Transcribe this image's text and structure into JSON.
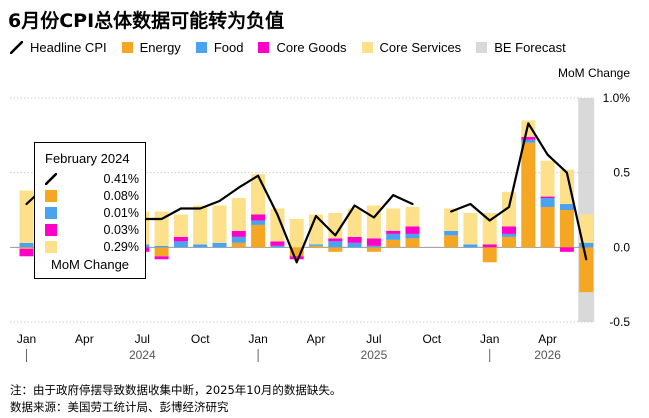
{
  "title": "6月份CPI总体数据可能转为负值",
  "legend": [
    {
      "label": "Headline CPI",
      "color": "#000000",
      "kind": "line"
    },
    {
      "label": "Energy",
      "color": "#f5a623",
      "kind": "box"
    },
    {
      "label": "Food",
      "color": "#4aa3f0",
      "kind": "box"
    },
    {
      "label": "Core Goods",
      "color": "#ff00c8",
      "kind": "box"
    },
    {
      "label": "Core Services",
      "color": "#fde08a",
      "kind": "box"
    },
    {
      "label": "BE Forecast",
      "color": "#d9d9d9",
      "kind": "box"
    }
  ],
  "tooltip": {
    "title": "February 2024",
    "rows": [
      {
        "value": "0.41%",
        "color": "#000000",
        "kind": "line"
      },
      {
        "value": "0.08%",
        "color": "#f5a623",
        "kind": "box"
      },
      {
        "value": "0.01%",
        "color": "#4aa3f0",
        "kind": "box"
      },
      {
        "value": "0.03%",
        "color": "#ff00c8",
        "kind": "box"
      },
      {
        "value": "0.29%",
        "color": "#fde08a",
        "kind": "box"
      }
    ],
    "unit": "MoM Change"
  },
  "footnote": "注：由于政府停摆导致数据收集中断，2025年10月的数据缺失。",
  "source": "数据来源：美国劳工统计局、彭博经济研究",
  "chart_data": {
    "type": "bar",
    "stacked": true,
    "ylabel": "MoM Change",
    "ylim": [
      -0.5,
      1.0
    ],
    "yticks": [
      {
        "value": 1.0,
        "label": "1.0%"
      },
      {
        "value": 0.5,
        "label": "0.5"
      },
      {
        "value": 0.0,
        "label": "0.0"
      },
      {
        "value": -0.5,
        "label": "-0.5"
      }
    ],
    "x_month_labels": [
      "Jan",
      "Apr",
      "Jul",
      "Oct",
      "Jan",
      "Apr",
      "Jul",
      "Oct",
      "Jan",
      "Apr"
    ],
    "x_month_label_index": [
      0,
      3,
      6,
      9,
      12,
      15,
      18,
      21,
      24,
      27
    ],
    "year_labels": [
      {
        "label": "2024",
        "index": 6
      },
      {
        "label": "2025",
        "index": 18
      },
      {
        "label": "2026",
        "index": 27
      }
    ],
    "year_separators": [
      0,
      12,
      24
    ],
    "forecast_start_index": 29,
    "missing_index": [
      21
    ],
    "categories": [
      "2024-01",
      "2024-02",
      "2024-03",
      "2024-04",
      "2024-05",
      "2024-06",
      "2024-07",
      "2024-08",
      "2024-09",
      "2024-10",
      "2024-11",
      "2024-12",
      "2025-01",
      "2025-02",
      "2025-03",
      "2025-04",
      "2025-05",
      "2025-06",
      "2025-07",
      "2025-08",
      "2025-09",
      "2025-10",
      "2025-11",
      "2025-12",
      "2026-01",
      "2026-02",
      "2026-03",
      "2026-04",
      "2026-05",
      "2026-06"
    ],
    "series": [
      {
        "name": "Energy",
        "color": "#f5a623",
        "values": [
          -0.01,
          0.08,
          0.05,
          0.05,
          -0.04,
          -0.06,
          0.0,
          -0.06,
          0.0,
          0.0,
          0.0,
          0.03,
          0.15,
          0.0,
          -0.06,
          0.01,
          -0.03,
          0.0,
          -0.03,
          0.05,
          0.06,
          null,
          0.08,
          0.0,
          -0.1,
          0.07,
          0.7,
          0.27,
          0.25,
          -0.3
        ]
      },
      {
        "name": "Food",
        "color": "#4aa3f0",
        "values": [
          0.03,
          0.01,
          0.01,
          0.01,
          0.0,
          0.02,
          0.02,
          0.01,
          0.04,
          0.02,
          0.03,
          0.04,
          0.03,
          0.01,
          0.0,
          0.01,
          0.04,
          0.03,
          0.01,
          0.04,
          0.03,
          null,
          0.03,
          0.02,
          0.0,
          0.02,
          0.02,
          0.06,
          0.04,
          0.03
        ]
      },
      {
        "name": "Core Goods",
        "color": "#ff00c8",
        "values": [
          -0.05,
          0.03,
          0.0,
          0.0,
          -0.05,
          -0.07,
          -0.03,
          -0.02,
          0.03,
          0.0,
          0.0,
          0.04,
          0.04,
          0.03,
          -0.02,
          0.0,
          0.02,
          0.04,
          0.05,
          0.02,
          0.05,
          null,
          0.0,
          0.0,
          0.02,
          0.05,
          0.02,
          0.01,
          -0.03,
          0.0
        ]
      },
      {
        "name": "Core Services",
        "color": "#fde08a",
        "values": [
          0.35,
          0.29,
          0.2,
          0.2,
          0.26,
          0.14,
          0.22,
          0.23,
          0.15,
          0.26,
          0.25,
          0.22,
          0.27,
          0.22,
          0.19,
          0.2,
          0.17,
          0.19,
          0.22,
          0.15,
          0.13,
          null,
          0.15,
          0.21,
          0.21,
          0.23,
          0.11,
          0.24,
          0.23,
          0.19
        ]
      }
    ],
    "headline": [
      0.29,
      0.41,
      0.38,
      0.31,
      0.0,
      -0.06,
      0.19,
      0.19,
      0.26,
      0.26,
      0.31,
      0.4,
      0.48,
      0.22,
      -0.1,
      0.21,
      0.08,
      0.28,
      0.2,
      0.35,
      0.29,
      null,
      0.24,
      0.29,
      0.18,
      0.27,
      0.83,
      0.62,
      0.5,
      -0.08
    ],
    "headline_color": "#000000"
  }
}
